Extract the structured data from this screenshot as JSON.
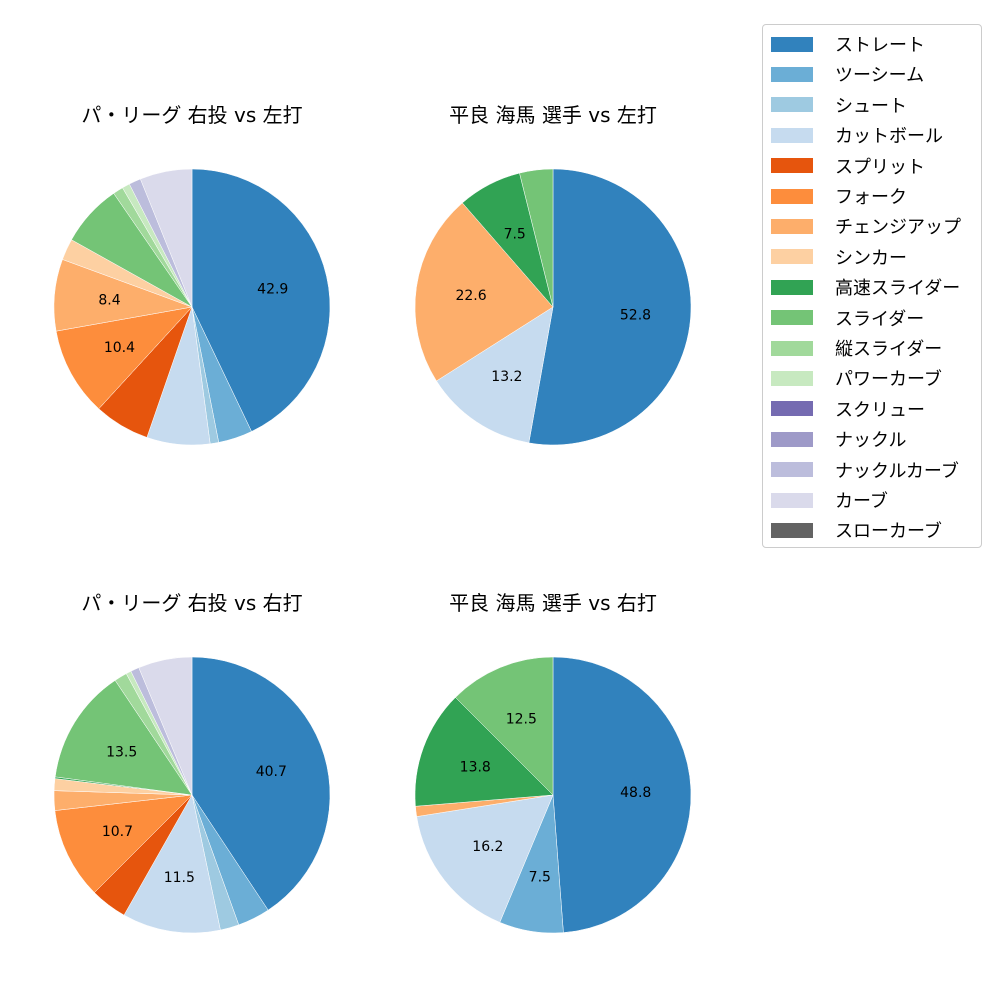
{
  "legend": {
    "items": [
      {
        "label": "ストレート",
        "color": "#3182bd"
      },
      {
        "label": "ツーシーム",
        "color": "#6baed6"
      },
      {
        "label": "シュート",
        "color": "#9ecae1"
      },
      {
        "label": "カットボール",
        "color": "#c6dbef"
      },
      {
        "label": "スプリット",
        "color": "#e6550d"
      },
      {
        "label": "フォーク",
        "color": "#fd8d3c"
      },
      {
        "label": "チェンジアップ",
        "color": "#fdae6b"
      },
      {
        "label": "シンカー",
        "color": "#fdd0a2"
      },
      {
        "label": "高速スライダー",
        "color": "#31a354"
      },
      {
        "label": "スライダー",
        "color": "#74c476"
      },
      {
        "label": "縦スライダー",
        "color": "#a1d99b"
      },
      {
        "label": "パワーカーブ",
        "color": "#c7e9c0"
      },
      {
        "label": "スクリュー",
        "color": "#756bb1"
      },
      {
        "label": "ナックル",
        "color": "#9e9ac8"
      },
      {
        "label": "ナックルカーブ",
        "color": "#bcbddc"
      },
      {
        "label": "カーブ",
        "color": "#dadaeb"
      },
      {
        "label": "スローカーブ",
        "color": "#636363"
      }
    ]
  },
  "chart_data": [
    {
      "type": "pie",
      "title": "パ・リーグ 右投 vs 左打",
      "categories": [
        "ストレート",
        "ツーシーム",
        "シュート",
        "カットボール",
        "スプリット",
        "フォーク",
        "チェンジアップ",
        "シンカー",
        "高速スライダー",
        "スライダー",
        "縦スライダー",
        "パワーカーブ",
        "スクリュー",
        "ナックル",
        "ナックルカーブ",
        "カーブ",
        "スローカーブ"
      ],
      "values": [
        42.9,
        4.0,
        1.0,
        7.4,
        6.5,
        10.4,
        8.4,
        2.5,
        0.0,
        7.3,
        1.2,
        0.9,
        0.0,
        0.0,
        1.4,
        6.1,
        0.0
      ],
      "labels_shown": [
        "42.9",
        "10.4",
        "8.4"
      ],
      "start_angle": 90,
      "direction": "clockwise"
    },
    {
      "type": "pie",
      "title": "平良 海馬 選手 vs 左打",
      "categories": [
        "ストレート",
        "カットボール",
        "チェンジアップ",
        "高速スライダー",
        "スライダー"
      ],
      "values": [
        52.8,
        13.2,
        22.6,
        7.5,
        3.9
      ],
      "labels_shown": [
        "52.8",
        "13.2",
        "22.6",
        "7.5"
      ],
      "start_angle": 90,
      "direction": "clockwise"
    },
    {
      "type": "pie",
      "title": "パ・リーグ 右投 vs 右打",
      "categories": [
        "ストレート",
        "ツーシーム",
        "シュート",
        "カットボール",
        "スプリット",
        "フォーク",
        "チェンジアップ",
        "シンカー",
        "高速スライダー",
        "スライダー",
        "縦スライダー",
        "パワーカーブ",
        "スクリュー",
        "ナックル",
        "ナックルカーブ",
        "カーブ",
        "スローカーブ"
      ],
      "values": [
        40.7,
        3.8,
        2.2,
        11.5,
        4.3,
        10.7,
        2.3,
        1.4,
        0.2,
        13.5,
        1.5,
        0.6,
        0.0,
        0.0,
        1.0,
        6.3,
        0.0
      ],
      "labels_shown": [
        "40.7",
        "11.5",
        "10.7",
        "13.5"
      ],
      "start_angle": 90,
      "direction": "clockwise"
    },
    {
      "type": "pie",
      "title": "平良 海馬 選手 vs 右打",
      "categories": [
        "ストレート",
        "ツーシーム",
        "カットボール",
        "チェンジアップ",
        "高速スライダー",
        "スライダー"
      ],
      "values": [
        48.8,
        7.5,
        16.2,
        1.2,
        13.8,
        12.5
      ],
      "labels_shown": [
        "48.8",
        "7.5",
        "16.2",
        "13.8",
        "12.5"
      ],
      "start_angle": 90,
      "direction": "clockwise"
    }
  ]
}
